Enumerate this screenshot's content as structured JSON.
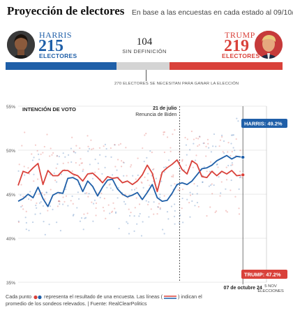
{
  "header": {
    "title": "Proyección de electores",
    "subtitle": "En base a las encuestas en cada estado al 09/10/24"
  },
  "candidates": {
    "harris": {
      "name": "HARRIS",
      "electors": "215",
      "label": "ELECTORES",
      "color": "#1f5fa8"
    },
    "trump": {
      "name": "TRUMP",
      "electors": "219",
      "label": "ELECTORES",
      "color": "#d9413a"
    }
  },
  "undecided": {
    "count": "104",
    "label": "SIN DEFINICIÓN",
    "color": "#d4d4d4"
  },
  "threshold": {
    "label": "270 ELECTORES  SE NECESITAN PARA GANAR LA ELECCIÓN"
  },
  "ev_totals": {
    "total": 538,
    "harris": 215,
    "undecided": 104,
    "trump": 219
  },
  "chart_data": {
    "type": "line",
    "title": "INTENCIÓN DE VOTO",
    "ylim": [
      35,
      55
    ],
    "yticks": [
      "35%",
      "40%",
      "45%",
      "50%",
      "55%"
    ],
    "y_values": [
      35,
      40,
      45,
      50,
      55
    ],
    "x_range": [
      0,
      100
    ],
    "annotation": {
      "date": "21 de julio",
      "text": "Renuncia de Biden",
      "x": 65
    },
    "current_marker": {
      "label": "07 de octubre 24",
      "x": 90.5
    },
    "end_marker": {
      "label_1": "5 NOV",
      "label_2": "ELECCIONES"
    },
    "series": [
      {
        "name": "HARRIS",
        "end_label": "HARRIS: 49.2%",
        "color": "#1f5fa8",
        "x": [
          0,
          2,
          4,
          6,
          8,
          10,
          12,
          14,
          16,
          18,
          20,
          22,
          24,
          26,
          28,
          30,
          32,
          34,
          36,
          38,
          40,
          42,
          44,
          46,
          48,
          50,
          52,
          54,
          56,
          58,
          60,
          62,
          64,
          66,
          68,
          70,
          72,
          74,
          76,
          78,
          80,
          82,
          84,
          86,
          88,
          90.5
        ],
        "values": [
          44.2,
          44.5,
          45.0,
          44.6,
          45.8,
          44.5,
          43.6,
          44.9,
          45.2,
          45.1,
          46.8,
          46.9,
          46.6,
          45.3,
          46.5,
          45.9,
          44.8,
          45.8,
          46.6,
          46.7,
          45.6,
          45.0,
          44.7,
          44.9,
          45.2,
          44.4,
          45.2,
          46.1,
          44.6,
          44.2,
          44.3,
          45.1,
          46.1,
          46.3,
          46.1,
          46.5,
          47.2,
          47.9,
          48.0,
          48.3,
          48.8,
          49.1,
          49.4,
          49.0,
          49.3,
          49.2
        ]
      },
      {
        "name": "TRUMP",
        "end_label": "TRUMP: 47.2%",
        "color": "#d9413a",
        "x": [
          0,
          2,
          4,
          6,
          8,
          10,
          12,
          14,
          16,
          18,
          20,
          22,
          24,
          26,
          28,
          30,
          32,
          34,
          36,
          38,
          40,
          42,
          44,
          46,
          48,
          50,
          52,
          54,
          56,
          58,
          60,
          62,
          64,
          66,
          68,
          70,
          72,
          74,
          76,
          78,
          80,
          82,
          84,
          86,
          88,
          90.5
        ],
        "values": [
          46.0,
          47.6,
          47.4,
          48.0,
          48.5,
          46.1,
          47.7,
          47.1,
          47.1,
          47.7,
          47.7,
          47.3,
          47.1,
          46.5,
          47.3,
          47.4,
          46.9,
          46.3,
          47.0,
          46.8,
          46.9,
          46.3,
          46.5,
          46.1,
          46.5,
          47.2,
          48.3,
          47.4,
          45.3,
          47.5,
          48.0,
          48.4,
          48.9,
          47.8,
          47.3,
          48.8,
          48.4,
          47.0,
          46.9,
          47.6,
          47.1,
          47.6,
          47.3,
          47.7,
          47.1,
          47.2
        ]
      }
    ]
  },
  "footnote": {
    "part1": "Cada punto",
    "part2": "representa el resultado de una encuesta. Las líneas (",
    "part3": ") indican el",
    "part4": "promedio de los sondeos relevados. | Fuente: RealClearPolitics"
  }
}
